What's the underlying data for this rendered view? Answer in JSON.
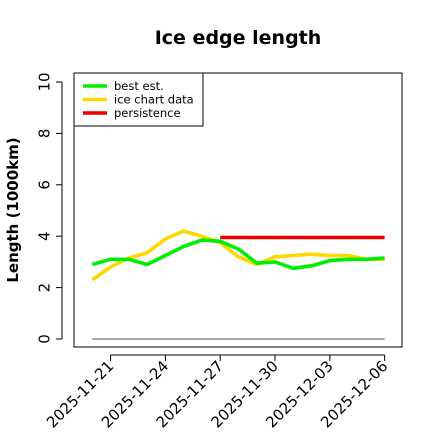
{
  "chart_data": {
    "type": "line",
    "title": "Ice edge length",
    "xlabel": "",
    "ylabel": "Length (1000km)",
    "ylim": [
      0,
      10
    ],
    "yticks": [
      0,
      2,
      4,
      6,
      8,
      10
    ],
    "xticks": [
      "2025-11-21",
      "2025-11-24",
      "2025-11-27",
      "2025-11-30",
      "2025-12-03",
      "2025-12-06"
    ],
    "legend_position": "top-left",
    "grid": false,
    "series": [
      {
        "name": "best est.",
        "color": "#00ee00",
        "x": [
          "2025-11-20",
          "2025-11-21",
          "2025-11-22",
          "2025-11-23",
          "2025-11-24",
          "2025-11-25",
          "2025-11-26",
          "2025-11-27",
          "2025-11-28",
          "2025-11-29",
          "2025-11-30",
          "2025-12-01",
          "2025-12-02",
          "2025-12-03",
          "2025-12-04",
          "2025-12-05",
          "2025-12-06"
        ],
        "values": [
          2.9,
          3.1,
          3.1,
          2.9,
          3.25,
          3.6,
          3.85,
          3.8,
          3.5,
          2.95,
          3.0,
          2.75,
          2.85,
          3.05,
          3.1,
          3.1,
          3.15
        ]
      },
      {
        "name": "ice chart data",
        "color": "#ffd700",
        "x": [
          "2025-11-20",
          "2025-11-21",
          "2025-11-22",
          "2025-11-23",
          "2025-11-24",
          "2025-11-25",
          "2025-11-26",
          "2025-11-27",
          "2025-11-28",
          "2025-11-29",
          "2025-11-30",
          "2025-12-01",
          "2025-12-02",
          "2025-12-03",
          "2025-12-04",
          "2025-12-05",
          "2025-12-06"
        ],
        "values": [
          2.3,
          2.8,
          3.15,
          3.35,
          3.9,
          4.2,
          4.0,
          3.75,
          3.2,
          2.9,
          3.2,
          3.25,
          3.3,
          3.25,
          3.25,
          3.1,
          3.1
        ]
      },
      {
        "name": "persistence",
        "color": "#ee0000",
        "x": [
          "2025-11-27",
          "2025-12-06"
        ],
        "values": [
          3.95,
          3.95
        ]
      },
      {
        "name": "",
        "color": "#888888",
        "x": [
          "2025-11-20",
          "2025-12-06"
        ],
        "values": [
          0,
          0
        ]
      }
    ]
  }
}
